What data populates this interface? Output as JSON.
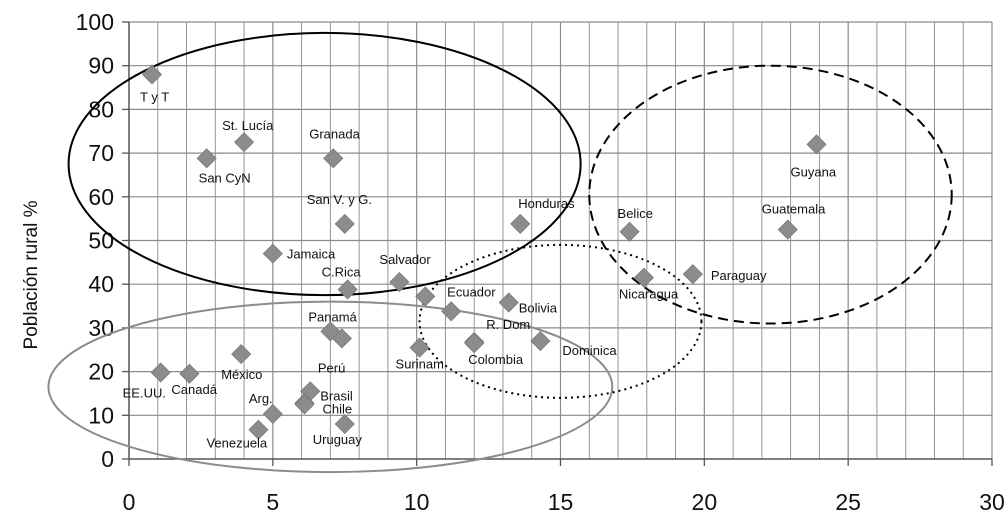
{
  "chart_data": {
    "type": "scatter",
    "ylabel": "Población rural %",
    "xlabel": "",
    "xlim": [
      0,
      30
    ],
    "ylim": [
      0,
      100
    ],
    "x_ticks": [
      "0",
      "5",
      "10",
      "15",
      "20",
      "25",
      "30"
    ],
    "y_ticks": [
      "0",
      "10",
      "20",
      "30",
      "40",
      "50",
      "60",
      "70",
      "80",
      "90",
      "100"
    ],
    "grid": true,
    "marker_color": "#8c8c8c",
    "points": [
      {
        "label": "T y T",
        "x": 0.8,
        "y": 88
      },
      {
        "label": "St. Lucía",
        "x": 4.0,
        "y": 72.5
      },
      {
        "label": "San CyN",
        "x": 2.7,
        "y": 68.8
      },
      {
        "label": "Granada",
        "x": 7.1,
        "y": 68.8
      },
      {
        "label": "San V. y G.",
        "x": 7.5,
        "y": 53.8
      },
      {
        "label": "Jamaica",
        "x": 5.0,
        "y": 47
      },
      {
        "label": "C.Rica",
        "x": 7.6,
        "y": 38.8
      },
      {
        "label": "Salvador",
        "x": 9.4,
        "y": 40.5
      },
      {
        "label": "",
        "x": 10.3,
        "y": 37.2
      },
      {
        "label": "Ecuador",
        "x": 11.2,
        "y": 33.8
      },
      {
        "label": "Honduras",
        "x": 13.6,
        "y": 53.8
      },
      {
        "label": "Bolivia",
        "x": 13.2,
        "y": 35.8
      },
      {
        "label": "Belice",
        "x": 17.4,
        "y": 52
      },
      {
        "label": "Nicaragua",
        "x": 17.9,
        "y": 41.5
      },
      {
        "label": "Paraguay",
        "x": 19.6,
        "y": 42.3
      },
      {
        "label": "Guatemala",
        "x": 22.9,
        "y": 52.5
      },
      {
        "label": "Guyana",
        "x": 23.9,
        "y": 72
      },
      {
        "label": "Panamá",
        "x": 7.0,
        "y": 29.2
      },
      {
        "label": "Perú",
        "x": 7.4,
        "y": 27.6
      },
      {
        "label": "R. Dom",
        "x": 12.0,
        "y": 26.8
      },
      {
        "label": "Colombia",
        "x": 12.0,
        "y": 26.5
      },
      {
        "label": "Dominica",
        "x": 14.3,
        "y": 27
      },
      {
        "label": "Surinam",
        "x": 10.1,
        "y": 25.5
      },
      {
        "label": "EE.UU.",
        "x": 1.1,
        "y": 19.8
      },
      {
        "label": "Canadá",
        "x": 2.1,
        "y": 19.5
      },
      {
        "label": "México",
        "x": 3.9,
        "y": 24
      },
      {
        "label": "Brasil",
        "x": 6.3,
        "y": 15.5
      },
      {
        "label": "",
        "x": 6.1,
        "y": 12.8
      },
      {
        "label": "Chile",
        "x": 6.1,
        "y": 12.5
      },
      {
        "label": "Arg.",
        "x": 5.0,
        "y": 10.3
      },
      {
        "label": "Venezuela",
        "x": 4.5,
        "y": 6.7
      },
      {
        "label": "Uruguay",
        "x": 7.5,
        "y": 8
      }
    ],
    "groups": [
      {
        "style": "solid",
        "color": "#000000",
        "cx": 6.8,
        "cy": 67.5,
        "rx": 8.9,
        "ry": 30
      },
      {
        "style": "solid",
        "color": "#8c8c8c",
        "cx": 7.0,
        "cy": 16.5,
        "rx": 9.8,
        "ry": 19.5
      },
      {
        "style": "dotted",
        "color": "#000000",
        "cx": 15.0,
        "cy": 31.5,
        "rx": 4.9,
        "ry": 17.5
      },
      {
        "style": "dashed",
        "color": "#000000",
        "cx": 22.3,
        "cy": 60.5,
        "rx": 6.3,
        "ry": 29.5
      }
    ]
  }
}
